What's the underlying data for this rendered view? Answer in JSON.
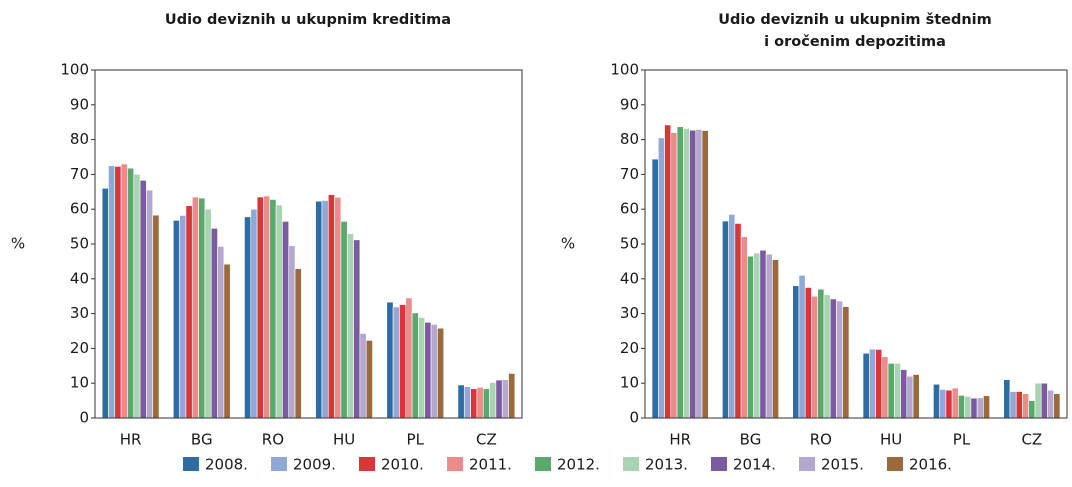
{
  "chart_data": [
    {
      "type": "bar",
      "title": [
        "Udio deviznih u ukupnim kreditima"
      ],
      "ylabel": "%",
      "categories": [
        "HR",
        "BG",
        "RO",
        "HU",
        "PL",
        "CZ"
      ],
      "ylim": [
        0,
        100
      ],
      "yticks": [
        0,
        10,
        20,
        30,
        40,
        50,
        60,
        70,
        80,
        90,
        100
      ],
      "series": [
        {
          "values": [
            66,
            56.8,
            57.8,
            62.3,
            33.3,
            9.5
          ]
        },
        {
          "values": [
            72.5,
            58.2,
            60,
            62.5,
            31.9,
            9
          ]
        },
        {
          "values": [
            72.3,
            61,
            63.5,
            64.2,
            32.6,
            8.4
          ]
        },
        {
          "values": [
            73,
            63.5,
            63.8,
            63.4,
            34.5,
            8.8
          ]
        },
        {
          "values": [
            71.8,
            63.2,
            62.8,
            56.5,
            30.2,
            8.4
          ]
        },
        {
          "values": [
            70,
            60,
            61.2,
            53,
            28.9,
            10.2
          ]
        },
        {
          "values": [
            68.3,
            54.5,
            56.5,
            51.2,
            27.5,
            10.9
          ]
        },
        {
          "values": [
            65.5,
            49.3,
            49.5,
            24.3,
            26.9,
            11
          ]
        },
        {
          "values": [
            58.3,
            44.2,
            42.9,
            22.3,
            25.8,
            12.8
          ]
        }
      ]
    },
    {
      "type": "bar",
      "title": [
        "Udio deviznih u ukupnim štednim",
        "i oročenim depozitima"
      ],
      "ylabel": "%",
      "categories": [
        "HR",
        "BG",
        "RO",
        "HU",
        "PL",
        "CZ"
      ],
      "ylim": [
        0,
        100
      ],
      "yticks": [
        0,
        10,
        20,
        30,
        40,
        50,
        60,
        70,
        80,
        90,
        100
      ],
      "series": [
        {
          "values": [
            74.4,
            56.6,
            38,
            18.6,
            9.7,
            11
          ]
        },
        {
          "values": [
            80.5,
            58.5,
            41,
            19.8,
            8.2,
            7.6
          ]
        },
        {
          "values": [
            84.2,
            55.9,
            37.5,
            19.7,
            8,
            7.6
          ]
        },
        {
          "values": [
            82,
            52.1,
            35,
            17.6,
            8.6,
            7
          ]
        },
        {
          "values": [
            83.7,
            46.5,
            37,
            15.7,
            6.5,
            5
          ]
        },
        {
          "values": [
            83.2,
            47.4,
            35.4,
            15.7,
            6.2,
            10
          ]
        },
        {
          "values": [
            82.7,
            48.2,
            34.2,
            13.9,
            5.7,
            10
          ]
        },
        {
          "values": [
            82.9,
            47.1,
            33.6,
            12,
            5.8,
            8
          ]
        },
        {
          "values": [
            82.6,
            45.5,
            32,
            12.5,
            6.4,
            7
          ]
        }
      ]
    }
  ],
  "legend": [
    {
      "name": "2008.",
      "color": "#2e6da4"
    },
    {
      "name": "2009.",
      "color": "#8fa8d6"
    },
    {
      "name": "2010.",
      "color": "#d9363a"
    },
    {
      "name": "2011.",
      "color": "#ea8c8a"
    },
    {
      "name": "2012.",
      "color": "#5aa86c"
    },
    {
      "name": "2013.",
      "color": "#a9d4b2"
    },
    {
      "name": "2014.",
      "color": "#7b5aa0"
    },
    {
      "name": "2015.",
      "color": "#b4a8d0"
    },
    {
      "name": "2016.",
      "color": "#9b6a3c"
    }
  ]
}
